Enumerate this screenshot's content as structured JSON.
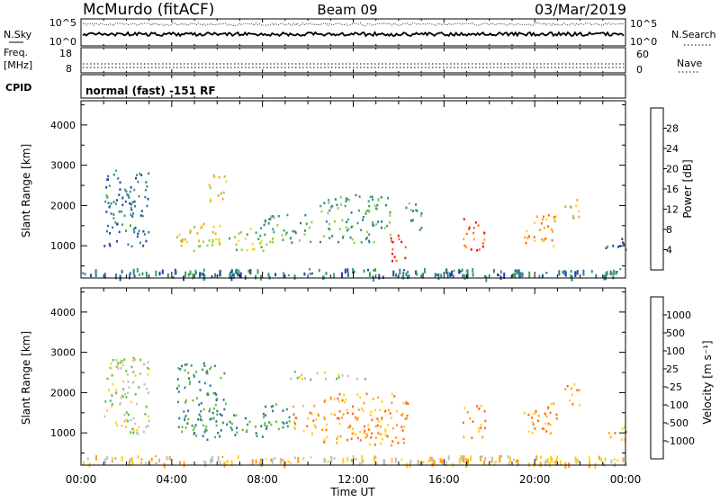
{
  "header": {
    "station": "McMurdo (fitACF)",
    "beam": "Beam 09",
    "date": "03/Mar/2019"
  },
  "noise_panel": {
    "left_label": "N.Sky",
    "right_label": "N.Search",
    "left_ticks": [
      "10^5",
      "10^0"
    ],
    "right_ticks": [
      "10^5",
      "10^0"
    ]
  },
  "freq_panel": {
    "left_label_1": "Freq.",
    "left_label_2": "[MHz]",
    "right_label": "Nave",
    "left_ticks": [
      "18",
      "8"
    ],
    "right_ticks": [
      "60",
      "0"
    ]
  },
  "cpid_panel": {
    "label": "CPID",
    "value": "normal (fast) -151 RF"
  },
  "x_axis": {
    "label": "Time UT",
    "ticks": [
      "00:00",
      "04:00",
      "08:00",
      "12:00",
      "16:00",
      "20:00",
      "00:00"
    ]
  },
  "power_panel": {
    "ylabel": "Slant Range [km]",
    "yticks": [
      "1000",
      "2000",
      "3000",
      "4000"
    ],
    "colorbar_label": "Power [dB]",
    "colorbar_ticks": [
      "4",
      "8",
      "12",
      "16",
      "20",
      "24",
      "28"
    ],
    "colors": [
      "#1a1aff",
      "#2244aa",
      "#2f7f8f",
      "#3f9f5f",
      "#8fcf3f",
      "#ffd21f",
      "#ffa01f",
      "#ff6a10",
      "#ee1010"
    ]
  },
  "velocity_panel": {
    "ylabel": "Slant Range [km]",
    "yticks": [
      "1000",
      "2000",
      "3000",
      "4000"
    ],
    "colorbar_label": "Velocity [m s⁻¹]",
    "colorbar_ticks": [
      "1000",
      "500",
      "100",
      "25",
      "-25",
      "-100",
      "-500",
      "-1000"
    ],
    "colors": [
      "#1a3fbf",
      "#2f6f9f",
      "#3f8f6f",
      "#5fbf3f",
      "#bfbfbf",
      "#ffcf1f",
      "#ff9f1f",
      "#ff6a10",
      "#ee1010"
    ]
  },
  "chart_data": {
    "type": "heatmap",
    "x_range_hours": [
      0,
      24
    ],
    "y_range_km": [
      200,
      4600
    ],
    "power_clusters": [
      {
        "t0": 1.0,
        "t1": 3.0,
        "r0": 1000,
        "r1": 2900,
        "level": 2
      },
      {
        "t0": 4.2,
        "t1": 6.2,
        "r0": 850,
        "r1": 1600,
        "level": 5
      },
      {
        "t0": 5.6,
        "t1": 6.4,
        "r0": 2100,
        "r1": 2800,
        "level": 5
      },
      {
        "t0": 6.5,
        "t1": 8.2,
        "r0": 900,
        "r1": 1500,
        "level": 4
      },
      {
        "t0": 8.0,
        "t1": 10.2,
        "r0": 1100,
        "r1": 1800,
        "level": 3
      },
      {
        "t0": 10.5,
        "t1": 13.6,
        "r0": 1100,
        "r1": 2300,
        "level": 3
      },
      {
        "t0": 13.6,
        "t1": 14.4,
        "r0": 650,
        "r1": 1300,
        "level": 8
      },
      {
        "t0": 14.2,
        "t1": 15.0,
        "r0": 1400,
        "r1": 2100,
        "level": 3
      },
      {
        "t0": 16.8,
        "t1": 17.8,
        "r0": 900,
        "r1": 1700,
        "level": 7
      },
      {
        "t0": 19.5,
        "t1": 21.0,
        "r0": 1000,
        "r1": 1800,
        "level": 6
      },
      {
        "t0": 21.3,
        "t1": 22.0,
        "r0": 1700,
        "r1": 2300,
        "level": 5
      },
      {
        "t0": 23.0,
        "t1": 24.0,
        "r0": 850,
        "r1": 1200,
        "level": 2
      }
    ],
    "velocity_clusters": [
      {
        "t0": 1.0,
        "t1": 3.0,
        "r0": 1000,
        "r1": 2900,
        "level": 4
      },
      {
        "t0": 4.2,
        "t1": 6.4,
        "r0": 850,
        "r1": 2800,
        "level": 2
      },
      {
        "t0": 6.5,
        "t1": 8.2,
        "r0": 900,
        "r1": 1500,
        "level": 2
      },
      {
        "t0": 8.0,
        "t1": 9.2,
        "r0": 1100,
        "r1": 1800,
        "level": 2
      },
      {
        "t0": 9.2,
        "t1": 10.5,
        "r0": 1000,
        "r1": 1700,
        "level": 6
      },
      {
        "t0": 10.5,
        "t1": 14.4,
        "r0": 700,
        "r1": 2000,
        "level": 6
      },
      {
        "t0": 9.0,
        "t1": 12.5,
        "r0": 2350,
        "r1": 2550,
        "level": 4
      },
      {
        "t0": 16.8,
        "t1": 17.8,
        "r0": 900,
        "r1": 1700,
        "level": 6
      },
      {
        "t0": 19.5,
        "t1": 21.0,
        "r0": 1000,
        "r1": 1800,
        "level": 6
      },
      {
        "t0": 21.3,
        "t1": 22.0,
        "r0": 1700,
        "r1": 2300,
        "level": 6
      },
      {
        "t0": 23.0,
        "t1": 24.0,
        "r0": 850,
        "r1": 1200,
        "level": 6
      }
    ]
  }
}
